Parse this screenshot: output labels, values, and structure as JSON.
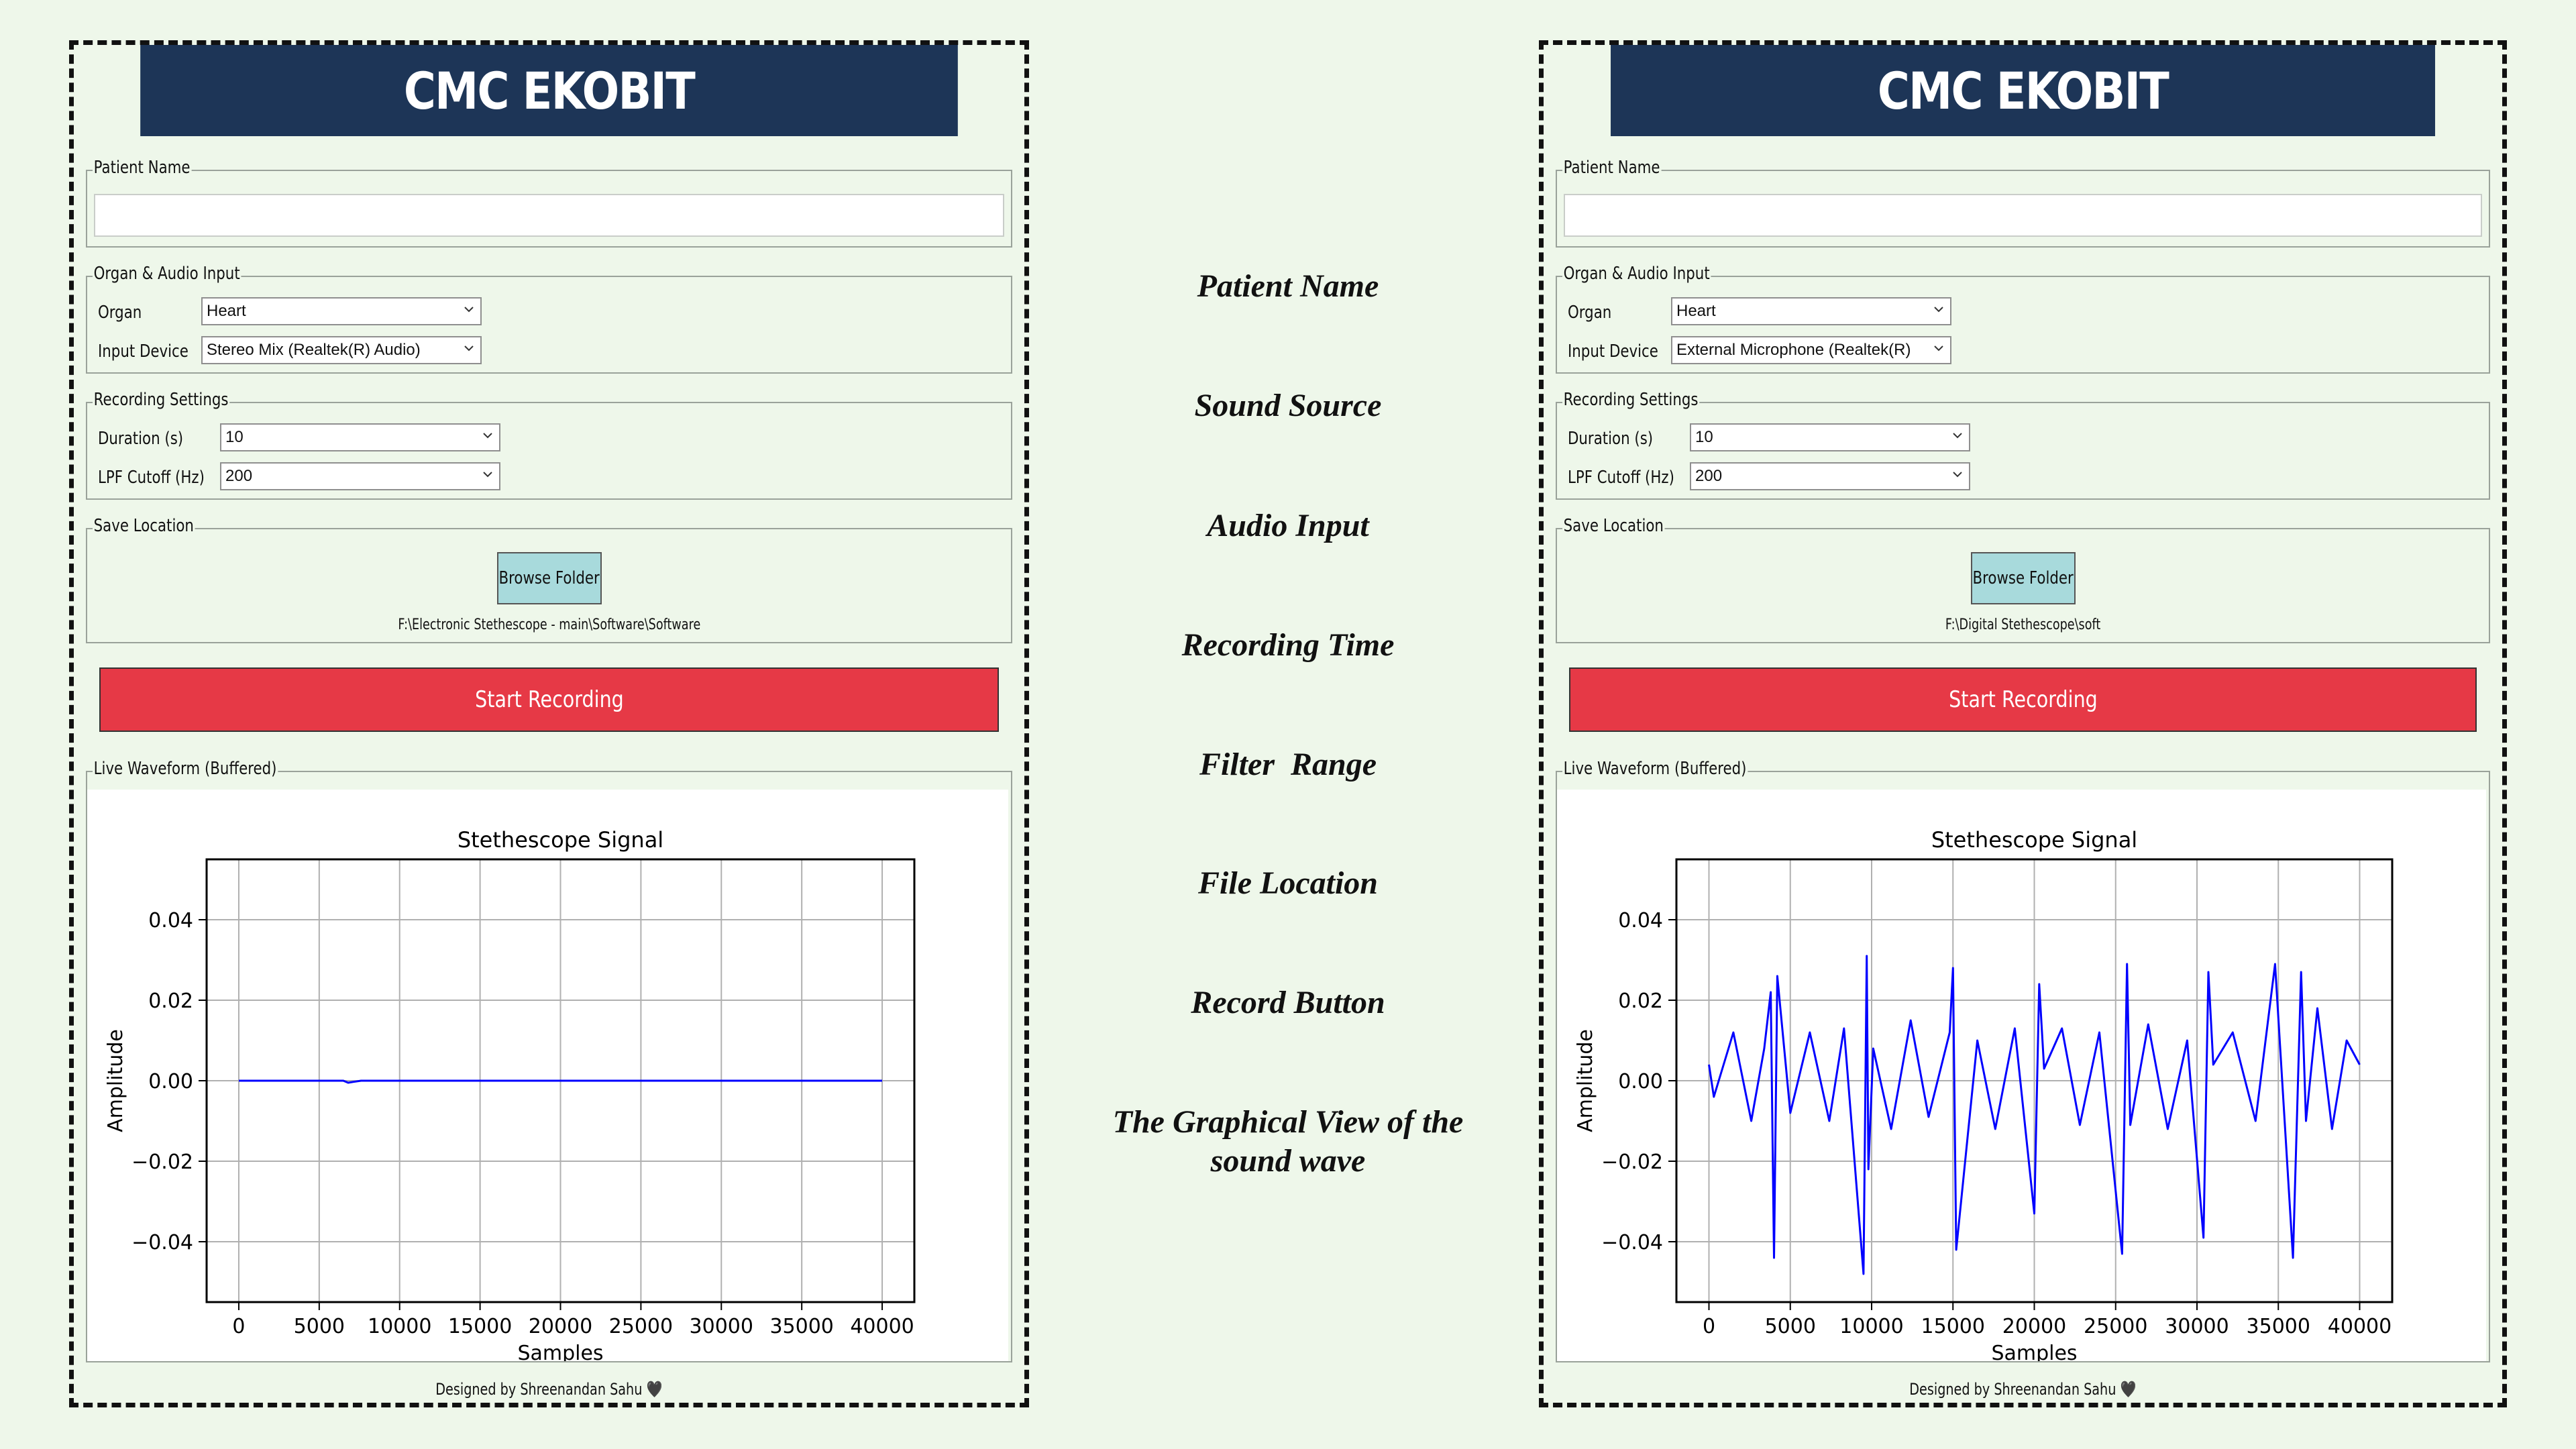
{
  "panels": [
    {
      "app_title": "CMC EKOBIT",
      "patient_name_legend": "Patient Name",
      "patient_name_value": "",
      "organ_audio_legend": "Organ & Audio Input",
      "organ_label": "Organ",
      "organ_value": "Heart",
      "input_device_label": "Input Device",
      "input_device_value": "Stereo Mix (Realtek(R) Audio)",
      "recording_settings_legend": "Recording Settings",
      "duration_label": "Duration (s)",
      "duration_value": "10",
      "lpf_label": "LPF Cutoff (Hz)",
      "lpf_value": "200",
      "save_location_legend": "Save Location",
      "browse_label": "Browse Folder",
      "save_path": "F:\\Electronic Stethescope - main\\Software\\Software",
      "record_label": "Start Recording",
      "waveform_legend": "Live Waveform (Buffered)",
      "credit": "Designed by Shreenandan Sahu 🖤"
    },
    {
      "app_title": "CMC EKOBIT",
      "patient_name_legend": "Patient Name",
      "patient_name_value": "",
      "organ_audio_legend": "Organ & Audio Input",
      "organ_label": "Organ",
      "organ_value": "Heart",
      "input_device_label": "Input Device",
      "input_device_value": "External Microphone (Realtek(R)",
      "recording_settings_legend": "Recording Settings",
      "duration_label": "Duration (s)",
      "duration_value": "10",
      "lpf_label": "LPF Cutoff (Hz)",
      "lpf_value": "200",
      "save_location_legend": "Save Location",
      "browse_label": "Browse Folder",
      "save_path": "F:\\Digital Stethescope\\soft",
      "record_label": "Start Recording",
      "waveform_legend": "Live Waveform (Buffered)",
      "credit": "Designed by Shreenandan Sahu 🖤"
    }
  ],
  "annotations": [
    "Patient Name",
    "Sound Source",
    "Audio Input",
    "Recording Time",
    "Filter  Range",
    "File Location",
    "Record Button",
    "The Graphical View of the sound wave"
  ],
  "chart_data": [
    {
      "type": "line",
      "title": "Stethescope Signal",
      "xlabel": "Samples",
      "ylabel": "Amplitude",
      "xlim": [
        -2000,
        42000
      ],
      "ylim": [
        -0.055,
        0.055
      ],
      "xticks": [
        0,
        5000,
        10000,
        15000,
        20000,
        25000,
        30000,
        35000,
        40000
      ],
      "yticks": [
        -0.04,
        -0.02,
        0.0,
        0.02,
        0.04
      ],
      "xtick_labels": [
        "0",
        "5000",
        "10000",
        "15000",
        "20000",
        "25000",
        "30000",
        "35000",
        "40000"
      ],
      "ytick_labels": [
        "−0.04",
        "−0.02",
        "0.00",
        "0.02",
        "0.04"
      ],
      "grid": true,
      "line_color": "#0000ff",
      "series": [
        {
          "x": [
            0,
            6500,
            6800,
            7100,
            7600,
            40000
          ],
          "values": [
            0,
            0,
            -0.0005,
            -0.0003,
            0,
            0
          ]
        }
      ]
    },
    {
      "type": "line",
      "title": "Stethescope Signal",
      "xlabel": "Samples",
      "ylabel": "Amplitude",
      "xlim": [
        -2000,
        42000
      ],
      "ylim": [
        -0.055,
        0.055
      ],
      "xticks": [
        0,
        5000,
        10000,
        15000,
        20000,
        25000,
        30000,
        35000,
        40000
      ],
      "yticks": [
        -0.04,
        -0.02,
        0.0,
        0.02,
        0.04
      ],
      "xtick_labels": [
        "0",
        "5000",
        "10000",
        "15000",
        "20000",
        "25000",
        "30000",
        "35000",
        "40000"
      ],
      "ytick_labels": [
        "−0.04",
        "−0.02",
        "0.00",
        "0.02",
        "0.04"
      ],
      "grid": true,
      "line_color": "#0000ff",
      "series": [
        {
          "x": [
            0,
            300,
            1500,
            2600,
            3400,
            3800,
            4000,
            4200,
            5000,
            6200,
            7400,
            8300,
            9500,
            9700,
            9800,
            10100,
            11200,
            12400,
            13500,
            14800,
            15000,
            15200,
            16500,
            17600,
            18800,
            20000,
            20300,
            20600,
            21700,
            22800,
            24000,
            25400,
            25700,
            25900,
            27000,
            28200,
            29400,
            30400,
            30700,
            31000,
            32200,
            33600,
            34800,
            35900,
            36400,
            36700,
            37400,
            38300,
            39200,
            40000
          ],
          "values": [
            0.004,
            -0.004,
            0.012,
            -0.01,
            0.008,
            0.022,
            -0.044,
            0.026,
            -0.008,
            0.012,
            -0.01,
            0.013,
            -0.048,
            0.031,
            -0.022,
            0.008,
            -0.012,
            0.015,
            -0.009,
            0.012,
            0.028,
            -0.042,
            0.01,
            -0.012,
            0.013,
            -0.033,
            0.024,
            0.003,
            0.013,
            -0.011,
            0.012,
            -0.043,
            0.029,
            -0.011,
            0.014,
            -0.012,
            0.01,
            -0.039,
            0.027,
            0.004,
            0.012,
            -0.01,
            0.029,
            -0.044,
            0.027,
            -0.01,
            0.018,
            -0.012,
            0.01,
            0.004
          ]
        }
      ]
    }
  ]
}
